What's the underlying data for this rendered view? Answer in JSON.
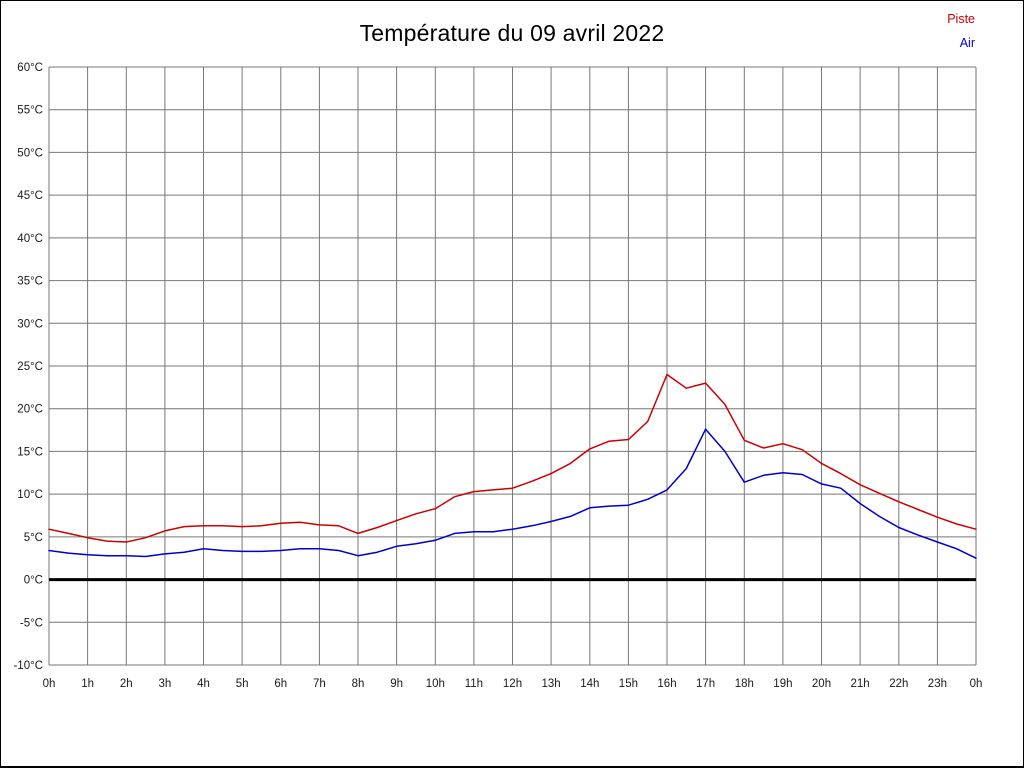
{
  "page": {
    "background": "#ffffff",
    "frame_color": "#000000"
  },
  "chart_data": {
    "type": "line",
    "title": "Température du 09 avril 2022",
    "xlabel": "",
    "ylabel": "",
    "xlim": [
      0,
      24
    ],
    "ylim": [
      -10,
      60
    ],
    "y_step": 5,
    "grid": true,
    "grid_color": "#777777",
    "tick_label_color": "#1a1a1a",
    "zero_line": {
      "value": 0,
      "color": "#000000",
      "width": 3
    },
    "legend_position": "top-right",
    "x_tick_labels": [
      "0h",
      "1h",
      "2h",
      "3h",
      "4h",
      "5h",
      "6h",
      "7h",
      "8h",
      "9h",
      "10h",
      "11h",
      "12h",
      "13h",
      "14h",
      "15h",
      "16h",
      "17h",
      "18h",
      "19h",
      "20h",
      "21h",
      "22h",
      "23h",
      "0h"
    ],
    "y_tick_labels": [
      "60°C",
      "55°C",
      "50°C",
      "45°C",
      "40°C",
      "35°C",
      "30°C",
      "25°C",
      "20°C",
      "15°C",
      "10°C",
      "5°C",
      "0°C",
      "-5°C",
      "-10°C"
    ],
    "x_start": 0,
    "x_step_hours": 0.5,
    "series": [
      {
        "name": "Piste",
        "color": "#cc0000",
        "values": [
          5.9,
          5.4,
          4.9,
          4.5,
          4.4,
          4.9,
          5.7,
          6.2,
          6.3,
          6.3,
          6.2,
          6.3,
          6.6,
          6.7,
          6.4,
          6.3,
          5.4,
          6.1,
          6.9,
          7.7,
          8.3,
          9.7,
          10.3,
          10.5,
          10.7,
          11.5,
          12.4,
          13.6,
          15.3,
          16.2,
          16.4,
          18.5,
          24.0,
          22.4,
          23.0,
          20.5,
          16.3,
          15.4,
          15.9,
          15.2,
          13.6,
          12.4,
          11.1,
          10.1,
          9.1,
          8.2,
          7.3,
          6.5,
          5.9
        ]
      },
      {
        "name": "Air",
        "color": "#0000cc",
        "values": [
          3.4,
          3.1,
          2.9,
          2.8,
          2.8,
          2.7,
          3.0,
          3.2,
          3.6,
          3.4,
          3.3,
          3.3,
          3.4,
          3.6,
          3.6,
          3.4,
          2.8,
          3.2,
          3.9,
          4.2,
          4.6,
          5.4,
          5.6,
          5.6,
          5.9,
          6.3,
          6.8,
          7.4,
          8.4,
          8.6,
          8.7,
          9.4,
          10.5,
          13.0,
          17.6,
          15.0,
          11.4,
          12.2,
          12.5,
          12.3,
          11.2,
          10.7,
          8.9,
          7.4,
          6.1,
          5.2,
          4.4,
          3.6,
          2.5
        ]
      }
    ]
  }
}
